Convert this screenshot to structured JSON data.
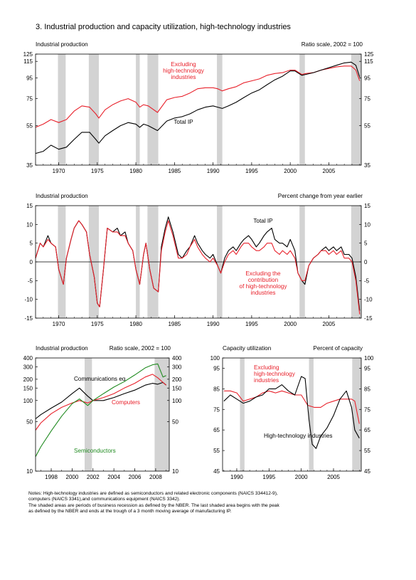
{
  "figure_title": "3.  Industrial production and capacity utilization, high-technology industries",
  "colors": {
    "total": "#000000",
    "excluding": "#e8202a",
    "semiconductors": "#1f8a1f",
    "recession": "#d3d3d3"
  },
  "notes": [
    "Notes:  High-technology industries are defined as semiconductors and related electronic components (NAICS 334412-9),",
    "computers (NAICS 3341),and communications equipment (NAICS 3342).",
    "   The shaded areas are periods of business recession as defined by the NBER. The last shaded area begins with the peak",
    "as defined by the NBER and ends at the trough of a 3 month moving average of manufacturing IP."
  ],
  "chart_data": [
    {
      "id": "panel1",
      "type": "line",
      "title": "Industrial production",
      "scale_note": "Ratio scale, 2002 = 100",
      "y_scale": "log",
      "ylim": [
        35,
        125
      ],
      "yticks": [
        "125",
        "115",
        "95",
        "75",
        "55",
        "35"
      ],
      "xlim": [
        1967,
        2009.2
      ],
      "xticks": [
        "1970",
        "1975",
        "1980",
        "1985",
        "1990",
        "1995",
        "2000",
        "2005"
      ],
      "recessions": [
        [
          1969.9,
          1970.9
        ],
        [
          1973.9,
          1975.2
        ],
        [
          1980.0,
          1980.5
        ],
        [
          1981.5,
          1982.9
        ],
        [
          1990.5,
          1991.2
        ],
        [
          2001.2,
          2001.9
        ],
        [
          2007.9,
          2009.2
        ]
      ],
      "series": [
        {
          "name": "Excluding high-technology industries",
          "label": [
            "Excluding",
            "high-technology",
            "industries"
          ],
          "color": "#e8202a",
          "x": [
            1967,
            1968,
            1969,
            1970,
            1971,
            1972,
            1973,
            1974,
            1974.8,
            1975.2,
            1976,
            1977,
            1978,
            1979,
            1980,
            1980.5,
            1981,
            1981.6,
            1982.8,
            1984,
            1985,
            1986,
            1987,
            1988,
            1989,
            1990,
            1990.6,
            1991.2,
            1992,
            1993,
            1994,
            1995,
            1996,
            1997,
            1998,
            1999,
            2000,
            2000.6,
            2001.5,
            2002,
            2003,
            2004,
            2005,
            2006,
            2007,
            2007.9,
            2008.5,
            2009
          ],
          "y": [
            54,
            56,
            59,
            57,
            59,
            65,
            69,
            68,
            63,
            60,
            66,
            70,
            73,
            75,
            72,
            68,
            70,
            69,
            64,
            74,
            76,
            77,
            80,
            84,
            85,
            85,
            84,
            82,
            84,
            86,
            90,
            92,
            94,
            98,
            100,
            101,
            104,
            104,
            99,
            100,
            101,
            104,
            106,
            108,
            109,
            109,
            104,
            92
          ]
        },
        {
          "name": "Total IP",
          "label": [
            "Total IP"
          ],
          "color": "#000000",
          "x": [
            1967,
            1968,
            1969,
            1970,
            1971,
            1972,
            1973,
            1974,
            1974.8,
            1975.2,
            1976,
            1977,
            1978,
            1979,
            1980,
            1980.5,
            1981,
            1981.6,
            1982.8,
            1984,
            1985,
            1986,
            1987,
            1988,
            1989,
            1990,
            1990.6,
            1991.2,
            1992,
            1993,
            1994,
            1995,
            1996,
            1997,
            1998,
            1999,
            2000,
            2000.6,
            2001.5,
            2002,
            2003,
            2004,
            2005,
            2006,
            2007,
            2007.9,
            2008.5,
            2009
          ],
          "y": [
            40,
            41,
            44,
            42,
            43,
            47,
            51,
            51,
            47,
            45,
            49,
            52,
            55,
            57,
            56,
            54,
            56,
            55,
            52,
            58,
            60,
            61,
            63,
            66,
            68,
            69,
            68,
            67,
            69,
            72,
            76,
            80,
            83,
            88,
            93,
            97,
            103,
            103,
            98,
            99,
            101,
            104,
            107,
            110,
            113,
            114,
            110,
            96
          ]
        }
      ]
    },
    {
      "id": "panel2",
      "type": "line",
      "title": "Industrial production",
      "scale_note": "Percent change from year earlier",
      "ylim": [
        -15,
        15
      ],
      "yticks": [
        "15",
        "10",
        "5",
        "0",
        "-5",
        "-10",
        "-15"
      ],
      "xlim": [
        1967,
        2009.2
      ],
      "xticks": [
        "1970",
        "1975",
        "1980",
        "1985",
        "1990",
        "1995",
        "2000",
        "2005"
      ],
      "recessions": [
        [
          1969.9,
          1970.9
        ],
        [
          1973.9,
          1975.2
        ],
        [
          1980.0,
          1980.5
        ],
        [
          1981.5,
          1982.9
        ],
        [
          1990.5,
          1991.2
        ],
        [
          2001.2,
          2001.9
        ],
        [
          2007.9,
          2009.2
        ]
      ],
      "series": [
        {
          "name": "Total IP",
          "label": [
            "Total IP"
          ],
          "color": "#000000",
          "x": [
            1967,
            1967.6,
            1968,
            1968.6,
            1969,
            1969.6,
            1970,
            1970.6,
            1971,
            1971.6,
            1972,
            1972.6,
            1973,
            1973.6,
            1974,
            1974.6,
            1975,
            1975.3,
            1975.8,
            1976.3,
            1977,
            1977.6,
            1978,
            1978.6,
            1979,
            1979.6,
            1980,
            1980.5,
            1981,
            1981.3,
            1981.8,
            1982.3,
            1982.9,
            1983.3,
            1983.8,
            1984.2,
            1984.8,
            1985.5,
            1986,
            1986.6,
            1987,
            1987.6,
            1988,
            1988.6,
            1989,
            1989.6,
            1990,
            1990.6,
            1991,
            1991.5,
            1992,
            1992.6,
            1993,
            1993.6,
            1994,
            1994.6,
            1995,
            1995.6,
            1996,
            1996.6,
            1997,
            1997.6,
            1998,
            1998.6,
            1999,
            1999.6,
            2000,
            2000.6,
            2001,
            2001.5,
            2001.9,
            2002.4,
            2003,
            2003.6,
            2004,
            2004.6,
            2005,
            2005.6,
            2006,
            2006.6,
            2007,
            2007.6,
            2008,
            2008.5,
            2009
          ],
          "y": [
            1,
            5,
            4,
            7,
            5,
            4,
            -2,
            -6,
            1,
            6,
            9,
            11,
            10,
            8,
            2,
            -4,
            -11,
            -12,
            -2,
            9,
            8,
            9,
            7,
            8,
            5,
            3,
            -2,
            -6,
            2,
            5,
            -2,
            -7,
            -8,
            4,
            9,
            12,
            8,
            2,
            1,
            3,
            4,
            7,
            5,
            3,
            2,
            1,
            2,
            -1,
            -3,
            1,
            3,
            4,
            3,
            5,
            6,
            7,
            6,
            4,
            5,
            7,
            8,
            9,
            6,
            5,
            5,
            4,
            6,
            3,
            -3,
            -5,
            -6,
            -1,
            1,
            2,
            3,
            4,
            3,
            4,
            3,
            4,
            2,
            2,
            1,
            -4,
            -13
          ]
        },
        {
          "name": "Excluding the contribution of high-technology industries",
          "label": [
            "Excluding the",
            "contribution",
            "of high-technology",
            "industries"
          ],
          "color": "#e8202a",
          "x": [
            1967,
            1967.6,
            1968,
            1968.6,
            1969,
            1969.6,
            1970,
            1970.6,
            1971,
            1971.6,
            1972,
            1972.6,
            1973,
            1973.6,
            1974,
            1974.6,
            1975,
            1975.3,
            1975.8,
            1976.3,
            1977,
            1977.6,
            1978,
            1978.6,
            1979,
            1979.6,
            1980,
            1980.5,
            1981,
            1981.3,
            1981.8,
            1982.3,
            1982.9,
            1983.3,
            1983.8,
            1984.2,
            1984.8,
            1985.5,
            1986,
            1986.6,
            1987,
            1987.6,
            1988,
            1988.6,
            1989,
            1989.6,
            1990,
            1990.6,
            1991,
            1991.5,
            1992,
            1992.6,
            1993,
            1993.6,
            1994,
            1994.6,
            1995,
            1995.6,
            1996,
            1996.6,
            1997,
            1997.6,
            1998,
            1998.6,
            1999,
            1999.6,
            2000,
            2000.6,
            2001,
            2001.5,
            2001.9,
            2002.4,
            2003,
            2003.6,
            2004,
            2004.6,
            2005,
            2005.6,
            2006,
            2006.6,
            2007,
            2007.6,
            2008,
            2008.5,
            2009
          ],
          "y": [
            1,
            5,
            4,
            6,
            5,
            4,
            -2,
            -6,
            1,
            6,
            9,
            11,
            10,
            8,
            2,
            -4,
            -11,
            -12,
            -2,
            9,
            8,
            8,
            7,
            7,
            5,
            3,
            -2,
            -6,
            2,
            5,
            -2,
            -7,
            -8,
            3,
            8,
            11,
            7,
            1,
            1,
            2,
            4,
            6,
            4,
            2,
            1,
            0,
            1,
            -1,
            -3,
            0,
            2,
            3,
            2,
            4,
            5,
            5,
            4,
            3,
            3,
            4,
            5,
            5,
            3,
            2,
            3,
            2,
            3,
            1,
            -3,
            -5,
            -5,
            -1,
            1,
            2,
            3,
            3,
            2,
            3,
            2,
            3,
            1,
            1,
            0,
            -5,
            -14
          ]
        }
      ]
    },
    {
      "id": "panel3",
      "type": "line",
      "title": "Industrial production",
      "scale_note": "Ratio scale, 2002 = 100",
      "y_scale": "log",
      "ylim": [
        10,
        400
      ],
      "yticks": [
        "400",
        "300",
        "200",
        "150",
        "100",
        "50",
        "10"
      ],
      "xlim": [
        1996.5,
        2009.3
      ],
      "xticks": [
        "1998",
        "2000",
        "2002",
        "2004",
        "2006",
        "2008"
      ],
      "recessions": [
        [
          2001.2,
          2001.9
        ],
        [
          2007.9,
          2009.3
        ]
      ],
      "series": [
        {
          "name": "Communications eq.",
          "label": [
            "Communications eq."
          ],
          "color": "#000000",
          "x": [
            1996.5,
            1997,
            1998,
            1999,
            2000,
            2000.7,
            2001.5,
            2002,
            2003,
            2004,
            2005,
            2006,
            2007,
            2007.7,
            2008.2,
            2008.7,
            2009
          ],
          "y": [
            55,
            63,
            78,
            95,
            125,
            150,
            115,
            100,
            100,
            110,
            125,
            140,
            165,
            175,
            170,
            180,
            165
          ]
        },
        {
          "name": "Computers",
          "label": [
            "Computers"
          ],
          "color": "#e8202a",
          "x": [
            1996.5,
            1997,
            1998,
            1999,
            2000,
            2000.7,
            2001.5,
            2002,
            2003,
            2004,
            2005,
            2006,
            2007,
            2007.7,
            2008.2,
            2008.7,
            2009
          ],
          "y": [
            38,
            48,
            65,
            80,
            92,
            100,
            92,
            100,
            110,
            125,
            150,
            175,
            215,
            235,
            210,
            180,
            165
          ]
        },
        {
          "name": "Semiconductors",
          "label": [
            "Semiconductors"
          ],
          "color": "#1f8a1f",
          "x": [
            1996.5,
            1997,
            1998,
            1999,
            2000,
            2000.7,
            2001.5,
            2002,
            2003,
            2004,
            2005,
            2006,
            2007,
            2007.7,
            2008.2,
            2008.7,
            2009
          ],
          "y": [
            16,
            22,
            37,
            60,
            90,
            105,
            85,
            100,
            125,
            155,
            185,
            230,
            290,
            320,
            330,
            215,
            225
          ]
        }
      ]
    },
    {
      "id": "panel4",
      "type": "line",
      "title": "Capacity utilization",
      "scale_note": "Percent of capacity",
      "ylim": [
        45,
        100
      ],
      "yticks": [
        "100",
        "95",
        "85",
        "75",
        "65",
        "55",
        "45"
      ],
      "xlim": [
        1987.8,
        2009.3
      ],
      "xticks": [
        "1990",
        "1995",
        "2000",
        "2005"
      ],
      "recessions": [
        [
          1990.5,
          1991.2
        ],
        [
          2001.2,
          2001.9
        ],
        [
          2007.9,
          2009.3
        ]
      ],
      "series": [
        {
          "name": "Excluding high-technology industries",
          "label": [
            "Excluding",
            "high-technology",
            "industries"
          ],
          "color": "#e8202a",
          "x": [
            1988,
            1989,
            1990,
            1991,
            1992,
            1993,
            1994,
            1995,
            1996,
            1997,
            1998,
            1999,
            2000,
            2001,
            2002,
            2003,
            2004,
            2005,
            2006,
            2007,
            2007.8,
            2008.3,
            2009
          ],
          "y": [
            84,
            84,
            83,
            79,
            80,
            81,
            83,
            84,
            83,
            84,
            83,
            82,
            82,
            77,
            76,
            76,
            78,
            79,
            80,
            80,
            80,
            79,
            68
          ]
        },
        {
          "name": "High-technology industries",
          "label": [
            "High-technology industries"
          ],
          "color": "#000000",
          "x": [
            1988,
            1989,
            1990,
            1991,
            1992,
            1993,
            1994,
            1995,
            1996,
            1997,
            1998,
            1999,
            2000,
            2000.6,
            2001.2,
            2001.7,
            2002.3,
            2003,
            2004,
            2005,
            2006,
            2007,
            2007.8,
            2008.3,
            2009
          ],
          "y": [
            79,
            82,
            80,
            78,
            79,
            81,
            82,
            85,
            85,
            87,
            84,
            82,
            91,
            90,
            70,
            58,
            56,
            62,
            66,
            72,
            80,
            84,
            76,
            65,
            61
          ]
        }
      ]
    }
  ]
}
